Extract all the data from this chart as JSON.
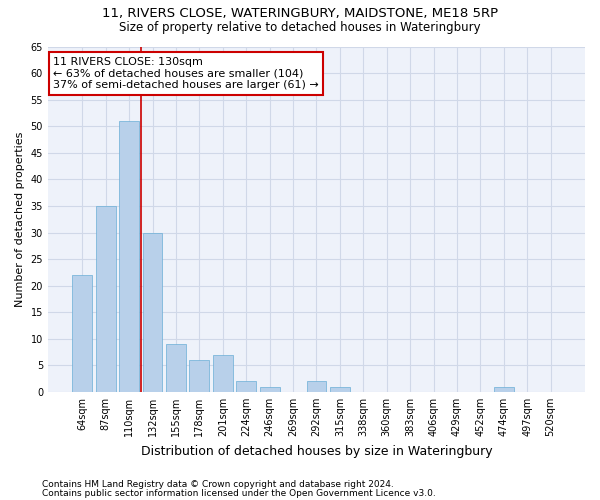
{
  "title": "11, RIVERS CLOSE, WATERINGBURY, MAIDSTONE, ME18 5RP",
  "subtitle": "Size of property relative to detached houses in Wateringbury",
  "xlabel": "Distribution of detached houses by size in Wateringbury",
  "ylabel": "Number of detached properties",
  "categories": [
    "64sqm",
    "87sqm",
    "110sqm",
    "132sqm",
    "155sqm",
    "178sqm",
    "201sqm",
    "224sqm",
    "246sqm",
    "269sqm",
    "292sqm",
    "315sqm",
    "338sqm",
    "360sqm",
    "383sqm",
    "406sqm",
    "429sqm",
    "452sqm",
    "474sqm",
    "497sqm",
    "520sqm"
  ],
  "values": [
    22,
    35,
    51,
    30,
    9,
    6,
    7,
    2,
    1,
    0,
    2,
    1,
    0,
    0,
    0,
    0,
    0,
    0,
    1,
    0,
    0
  ],
  "bar_color": "#b8d0ea",
  "bar_edge_color": "#6aaed6",
  "vline_bin_index": 2,
  "annotation_title": "11 RIVERS CLOSE: 130sqm",
  "annotation_line1": "← 63% of detached houses are smaller (104)",
  "annotation_line2": "37% of semi-detached houses are larger (61) →",
  "vline_color": "#cc0000",
  "annotation_box_edgecolor": "#cc0000",
  "ylim": [
    0,
    65
  ],
  "yticks": [
    0,
    5,
    10,
    15,
    20,
    25,
    30,
    35,
    40,
    45,
    50,
    55,
    60,
    65
  ],
  "footer1": "Contains HM Land Registry data © Crown copyright and database right 2024.",
  "footer2": "Contains public sector information licensed under the Open Government Licence v3.0.",
  "bg_color": "#eef2fa",
  "grid_color": "#d0d8e8",
  "title_fontsize": 9.5,
  "subtitle_fontsize": 8.5,
  "tick_fontsize": 7,
  "ylabel_fontsize": 8,
  "xlabel_fontsize": 9,
  "annotation_fontsize": 8,
  "footer_fontsize": 6.5
}
